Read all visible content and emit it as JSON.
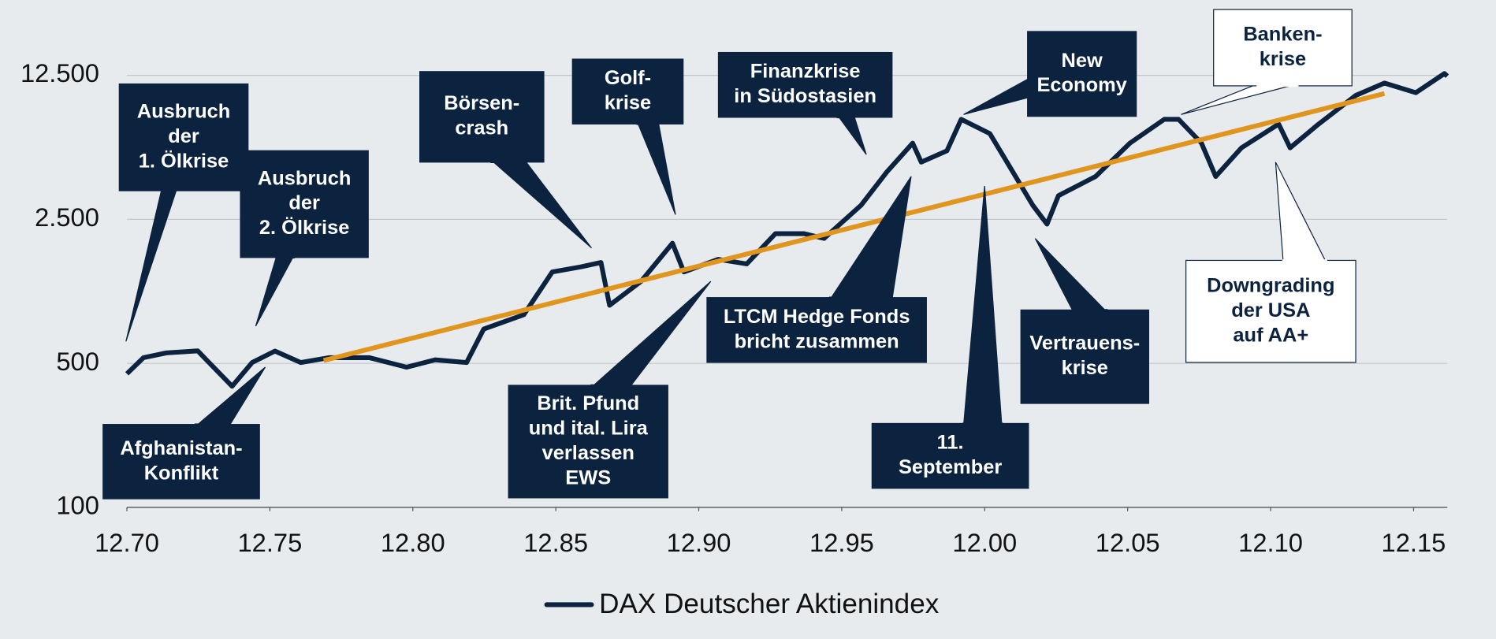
{
  "chart_data": {
    "type": "line",
    "x": [
      1970.92,
      1971.5,
      1972.3,
      1973.4,
      1973.7,
      1974.6,
      1975.3,
      1976.1,
      1977.0,
      1978.0,
      1979.4,
      1980.7,
      1981.7,
      1982.8,
      1983.4,
      1984.8,
      1985.8,
      1986.8,
      1987.5,
      1987.8,
      1988.9,
      1990.0,
      1990.4,
      1991.6,
      1992.6,
      1993.6,
      1994.6,
      1995.3,
      1996.6,
      1997.5,
      1998.4,
      1998.7,
      1999.6,
      2000.1,
      2001.1,
      2001.8,
      2002.6,
      2003.1,
      2003.5,
      2004.8,
      2006.0,
      2007.2,
      2007.7,
      2008.5,
      2009.0,
      2009.9,
      2011.2,
      2011.6,
      2012.6,
      2013.9,
      2014.9,
      2016.0,
      2017.0,
      2017.1
    ],
    "series": [
      {
        "name": "DAX Deutscher Aktienindex",
        "color": "#0c2340",
        "values": [
          445,
          533,
          562,
          575,
          520,
          387,
          505,
          574,
          505,
          533,
          533,
          479,
          520,
          505,
          734,
          861,
          1390,
          1470,
          1545,
          957,
          1250,
          1915,
          1390,
          1600,
          1520,
          2130,
          2130,
          2020,
          2930,
          4250,
          5860,
          4740,
          5380,
          7650,
          6520,
          4490,
          2930,
          2370,
          3260,
          4040,
          5860,
          7650,
          7650,
          5860,
          4040,
          5560,
          7250,
          5560,
          7250,
          9990,
          11470,
          10300,
          12760,
          12400
        ]
      }
    ],
    "trend": {
      "color": "#e0951f",
      "x": [
        1977.8,
        2014.9
      ],
      "values": [
        516,
        10200
      ]
    },
    "log_scale": true,
    "grid": true,
    "ylim": [
      100,
      12500
    ],
    "yticks": [
      {
        "value": 100,
        "label": "100"
      },
      {
        "value": 500,
        "label": "500"
      },
      {
        "value": 2500,
        "label": "2.500"
      },
      {
        "value": 12500,
        "label": "12.500"
      }
    ],
    "xlim": [
      1970.92,
      2017.1
    ],
    "xticks": [
      {
        "value": 1970.92,
        "label": "12.70"
      },
      {
        "value": 1975.92,
        "label": "12.75"
      },
      {
        "value": 1980.92,
        "label": "12.80"
      },
      {
        "value": 1985.92,
        "label": "12.85"
      },
      {
        "value": 1990.92,
        "label": "12.90"
      },
      {
        "value": 1995.92,
        "label": "12.95"
      },
      {
        "value": 2000.92,
        "label": "12.00"
      },
      {
        "value": 2005.92,
        "label": "12.05"
      },
      {
        "value": 2010.92,
        "label": "12.10"
      },
      {
        "value": 2015.92,
        "label": "12.15"
      }
    ],
    "annotations": [
      {
        "lines": [
          "Ausbruch",
          "der",
          "1. Ölkrise"
        ],
        "fill": "#0c2340",
        "text_color": "#ffffff"
      },
      {
        "lines": [
          "Ausbruch",
          "der",
          "2. Ölkrise"
        ],
        "fill": "#0c2340",
        "text_color": "#ffffff"
      },
      {
        "lines": [
          "Afghanistan-",
          "Konflikt"
        ],
        "fill": "#0c2340",
        "text_color": "#ffffff"
      },
      {
        "lines": [
          "Börsen-",
          "crash"
        ],
        "fill": "#0c2340",
        "text_color": "#ffffff"
      },
      {
        "lines": [
          "Golf-",
          "krise"
        ],
        "fill": "#0c2340",
        "text_color": "#ffffff"
      },
      {
        "lines": [
          "Finanzkrise",
          "in Südostasien"
        ],
        "fill": "#0c2340",
        "text_color": "#ffffff"
      },
      {
        "lines": [
          "New",
          "Economy"
        ],
        "fill": "#0c2340",
        "text_color": "#ffffff"
      },
      {
        "lines": [
          "Banken-",
          "krise"
        ],
        "fill": "#ffffff",
        "text_color": "#0c2340"
      },
      {
        "lines": [
          "Brit. Pfund",
          "und ital. Lira",
          "verlassen",
          "EWS"
        ],
        "fill": "#0c2340",
        "text_color": "#ffffff"
      },
      {
        "lines": [
          "LTCM Hedge Fonds",
          "bricht zusammen"
        ],
        "fill": "#0c2340",
        "text_color": "#ffffff"
      },
      {
        "lines": [
          "11.",
          "September"
        ],
        "fill": "#0c2340",
        "text_color": "#ffffff"
      },
      {
        "lines": [
          "Vertrauens-",
          "krise"
        ],
        "fill": "#0c2340",
        "text_color": "#ffffff"
      },
      {
        "lines": [
          "Downgrading",
          "der USA",
          "auf AA+"
        ],
        "fill": "#ffffff",
        "text_color": "#0c2340"
      }
    ]
  }
}
